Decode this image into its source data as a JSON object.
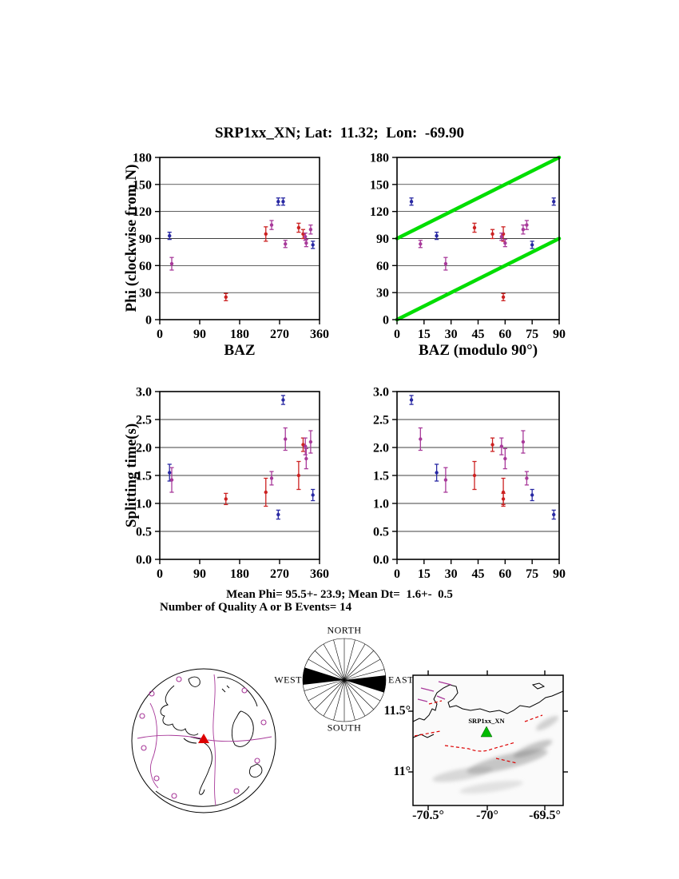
{
  "title": "SRP1xx_XN; Lat:  11.32;  Lon:  -69.90",
  "stats": {
    "line1": "Mean Phi= 95.5+- 23.9; Mean Dt=  1.6+-  0.5",
    "line2": "Number of Quality A or B Events= 14"
  },
  "colors": {
    "blue": "#2929a3",
    "red": "#cc2222",
    "magenta": "#a83a9a",
    "green": "#00dd00",
    "map_green": "#00bb00",
    "globe_red": "#dd0000"
  },
  "chart_data": {
    "type": "scatter",
    "events": [
      {
        "baz": 22,
        "phi": 93,
        "phi_err": 4,
        "dt": 1.55,
        "dt_err": 0.15,
        "color": "blue"
      },
      {
        "baz": 27,
        "phi": 62,
        "phi_err": 7,
        "dt": 1.42,
        "dt_err": 0.22,
        "color": "magenta"
      },
      {
        "baz": 149,
        "phi": 25,
        "phi_err": 4,
        "dt": 1.08,
        "dt_err": 0.1,
        "color": "red"
      },
      {
        "baz": 239,
        "phi": 95,
        "phi_err": 8,
        "dt": 1.2,
        "dt_err": 0.25,
        "color": "red"
      },
      {
        "baz": 252,
        "phi": 105,
        "phi_err": 5,
        "dt": 1.45,
        "dt_err": 0.12,
        "color": "magenta"
      },
      {
        "baz": 267,
        "phi": 131,
        "phi_err": 4,
        "dt": 0.8,
        "dt_err": 0.08,
        "color": "blue"
      },
      {
        "baz": 278,
        "phi": 131,
        "phi_err": 4,
        "dt": 2.85,
        "dt_err": 0.08,
        "color": "blue"
      },
      {
        "baz": 283,
        "phi": 84,
        "phi_err": 4,
        "dt": 2.15,
        "dt_err": 0.2,
        "color": "magenta"
      },
      {
        "baz": 313,
        "phi": 102,
        "phi_err": 5,
        "dt": 1.5,
        "dt_err": 0.25,
        "color": "red"
      },
      {
        "baz": 323,
        "phi": 95,
        "phi_err": 5,
        "dt": 2.05,
        "dt_err": 0.12,
        "color": "red"
      },
      {
        "baz": 328,
        "phi": 92,
        "phi_err": 4,
        "dt": 2.02,
        "dt_err": 0.15,
        "color": "magenta"
      },
      {
        "baz": 330,
        "phi": 85,
        "phi_err": 4,
        "dt": 1.8,
        "dt_err": 0.18,
        "color": "magenta"
      },
      {
        "baz": 340,
        "phi": 100,
        "phi_err": 5,
        "dt": 2.1,
        "dt_err": 0.2,
        "color": "magenta"
      },
      {
        "baz": 345,
        "phi": 83,
        "phi_err": 4,
        "dt": 1.15,
        "dt_err": 0.1,
        "color": "blue"
      }
    ],
    "panels": [
      {
        "id": "phi-vs-baz",
        "xlabel": "BAZ",
        "ylabel": "Phi (clockwise from N)",
        "y_field": "phi",
        "err_field": "phi_err",
        "xlim": [
          0,
          360
        ],
        "ylim": [
          0,
          180
        ],
        "xticks": [
          0,
          90,
          180,
          270,
          360
        ],
        "xtick_labels": [
          "0",
          "90",
          "180",
          "270",
          "360"
        ],
        "yticks": [
          0,
          30,
          60,
          90,
          120,
          150,
          180
        ],
        "ytick_labels": [
          "0",
          "30",
          "60",
          "90",
          "120",
          "150",
          "180"
        ],
        "grid_y": [
          30,
          60,
          90,
          120,
          150
        ]
      },
      {
        "id": "phi-vs-bazmod90",
        "xlabel": "BAZ (modulo 90°)",
        "ylabel": "Phi (clockwise from N)",
        "y_field": "phi",
        "err_field": "phi_err",
        "modulo": 90,
        "xlim": [
          0,
          90
        ],
        "ylim": [
          0,
          180
        ],
        "xticks": [
          0,
          15,
          30,
          45,
          60,
          75,
          90
        ],
        "xtick_labels": [
          "0",
          "15",
          "30",
          "45",
          "60",
          "75",
          "90"
        ],
        "yticks": [
          0,
          30,
          60,
          90,
          120,
          150,
          180
        ],
        "ytick_labels": [
          "0",
          "30",
          "60",
          "90",
          "120",
          "150",
          "180"
        ],
        "grid_y": [
          30,
          60,
          90,
          120,
          150
        ],
        "ref_lines": [
          {
            "x1": 0,
            "y1": 0,
            "x2": 90,
            "y2": 90
          },
          {
            "x1": 0,
            "y1": 90,
            "x2": 90,
            "y2": 180
          }
        ]
      },
      {
        "id": "dt-vs-baz",
        "xlabel": "",
        "ylabel": "Splitting time(s)",
        "y_field": "dt",
        "err_field": "dt_err",
        "xlim": [
          0,
          360
        ],
        "ylim": [
          0,
          3
        ],
        "xticks": [
          0,
          90,
          180,
          270,
          360
        ],
        "xtick_labels": [
          "0",
          "90",
          "180",
          "270",
          "360"
        ],
        "yticks": [
          0,
          0.5,
          1,
          1.5,
          2,
          2.5,
          3
        ],
        "ytick_labels": [
          "0.0",
          "0.5",
          "1.0",
          "1.5",
          "2.0",
          "2.5",
          "3.0"
        ],
        "grid_y": [
          0.5,
          1,
          1.5,
          2,
          2.5
        ]
      },
      {
        "id": "dt-vs-bazmod90",
        "xlabel": "",
        "ylabel": "Splitting time(s)",
        "y_field": "dt",
        "err_field": "dt_err",
        "modulo": 90,
        "xlim": [
          0,
          90
        ],
        "ylim": [
          0,
          3
        ],
        "xticks": [
          0,
          15,
          30,
          45,
          60,
          75,
          90
        ],
        "xtick_labels": [
          "0",
          "15",
          "30",
          "45",
          "60",
          "75",
          "90"
        ],
        "yticks": [
          0,
          0.5,
          1,
          1.5,
          2,
          2.5,
          3
        ],
        "ytick_labels": [
          "0.0",
          "0.5",
          "1.0",
          "1.5",
          "2.0",
          "2.5",
          "3.0"
        ],
        "grid_y": [
          0.5,
          1,
          1.5,
          2,
          2.5
        ]
      }
    ]
  },
  "rose": {
    "spoke_step_deg": 15,
    "petal_azimuth_deg": 95.5,
    "petal_halfwidth_deg": 12,
    "labels": {
      "north": "NORTH",
      "south": "SOUTH",
      "east": "EAST",
      "west": "WEST"
    }
  },
  "map": {
    "station_label": "SRP1xx_XN",
    "lat_labels": [
      "11.5°",
      "11°"
    ],
    "lon_labels": [
      "-70.5°",
      "-70°",
      "-69.5°"
    ]
  }
}
